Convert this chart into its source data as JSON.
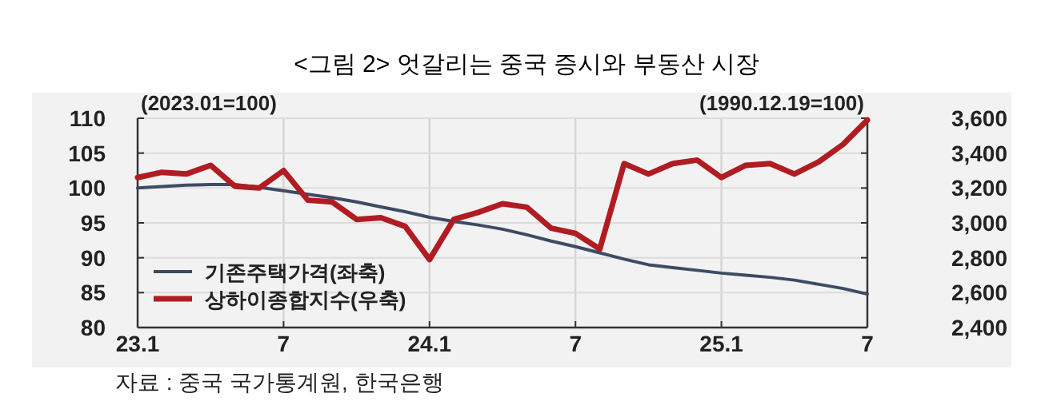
{
  "chart_data": {
    "type": "line",
    "title": "<그림 2> 엇갈리는 중국 증시와 부동산 시장",
    "ylabel": "(2023.01=100)",
    "y2label": "(1990.12.19=100)",
    "x": [
      "2023-01",
      "2023-02",
      "2023-03",
      "2023-04",
      "2023-05",
      "2023-06",
      "2023-07",
      "2023-08",
      "2023-09",
      "2023-10",
      "2023-11",
      "2023-12",
      "2024-01",
      "2024-02",
      "2024-03",
      "2024-04",
      "2024-05",
      "2024-06",
      "2024-07",
      "2024-08",
      "2024-09",
      "2024-10",
      "2024-11",
      "2024-12",
      "2025-01",
      "2025-02",
      "2025-03",
      "2025-04",
      "2025-05",
      "2025-06",
      "2025-07"
    ],
    "xlim": [
      "2023-01",
      "2025-07"
    ],
    "xticks": [
      {
        "value": "2023-01",
        "label": "23.1"
      },
      {
        "value": "2023-07",
        "label": "7"
      },
      {
        "value": "2024-01",
        "label": "24.1"
      },
      {
        "value": "2024-07",
        "label": "7"
      },
      {
        "value": "2025-01",
        "label": "25.1"
      },
      {
        "value": "2025-07",
        "label": "7"
      }
    ],
    "ylim": [
      80,
      110
    ],
    "yticks": [
      80,
      85,
      90,
      95,
      100,
      105,
      110
    ],
    "y2lim": [
      2400,
      3600
    ],
    "y2ticks": [
      {
        "value": 2400,
        "label": "2,400"
      },
      {
        "value": 2600,
        "label": "2,600"
      },
      {
        "value": 2800,
        "label": "2,800"
      },
      {
        "value": 3000,
        "label": "3,000"
      },
      {
        "value": 3200,
        "label": "3,200"
      },
      {
        "value": 3400,
        "label": "3,400"
      },
      {
        "value": 3600,
        "label": "3,600"
      }
    ],
    "series": [
      {
        "name": "기존주택가격(좌축)",
        "color": "#3d4b63",
        "values": [
          100.0,
          100.2,
          100.4,
          100.5,
          100.5,
          100.1,
          99.6,
          99.1,
          98.6,
          98.0,
          97.3,
          96.6,
          95.8,
          95.2,
          94.7,
          94.1,
          93.3,
          92.4,
          91.6,
          90.7,
          89.8,
          89.0,
          88.6,
          88.2,
          87.8,
          87.5,
          87.2,
          86.8,
          86.2,
          85.6,
          84.8
        ]
      },
      {
        "name": "상하이종합지수(우축)",
        "color": "#b01c22",
        "axis": "y2",
        "values": [
          3260,
          3290,
          3280,
          3330,
          3210,
          3200,
          3300,
          3130,
          3120,
          3020,
          3030,
          2980,
          2790,
          3020,
          3060,
          3110,
          3090,
          2970,
          2940,
          2850,
          3340,
          3280,
          3340,
          3360,
          3260,
          3330,
          3340,
          3280,
          3350,
          3450,
          3590
        ]
      }
    ],
    "grid": true,
    "legend": "bottom left",
    "annotations": [
      "자료 : 중국 국가통계원, 한국은행"
    ]
  }
}
